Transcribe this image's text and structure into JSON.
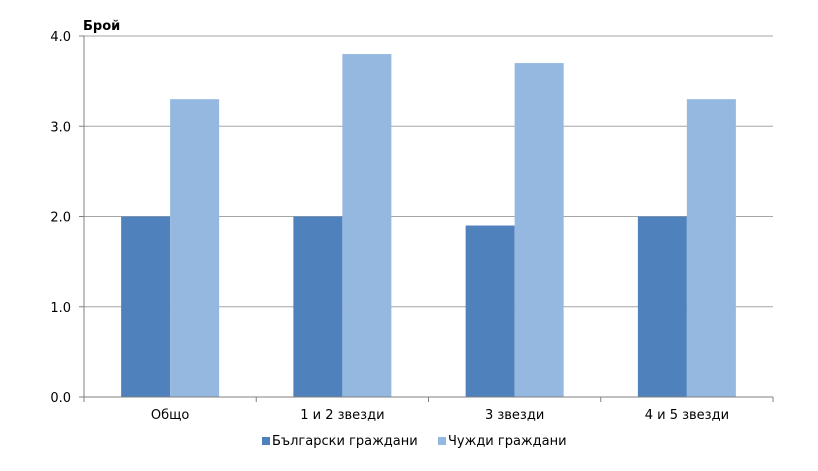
{
  "chart_data": {
    "type": "bar",
    "ylabel": "Брой",
    "xlabel": "",
    "categories": [
      "Общо",
      "1 и 2 звезди",
      "3 звезди",
      "4 и 5 звезди"
    ],
    "series": [
      {
        "name": "Български граждани",
        "values": [
          2.0,
          2.0,
          1.9,
          2.0
        ],
        "color": "#4F81BD"
      },
      {
        "name": "Чужди граждани",
        "values": [
          3.3,
          3.8,
          3.7,
          3.3
        ],
        "color": "#95B8E0"
      }
    ],
    "ylim": [
      0,
      4
    ],
    "yticks": [
      "0.0",
      "1.0",
      "2.0",
      "3.0",
      "4.0"
    ],
    "grid": true,
    "legend_position": "bottom"
  }
}
